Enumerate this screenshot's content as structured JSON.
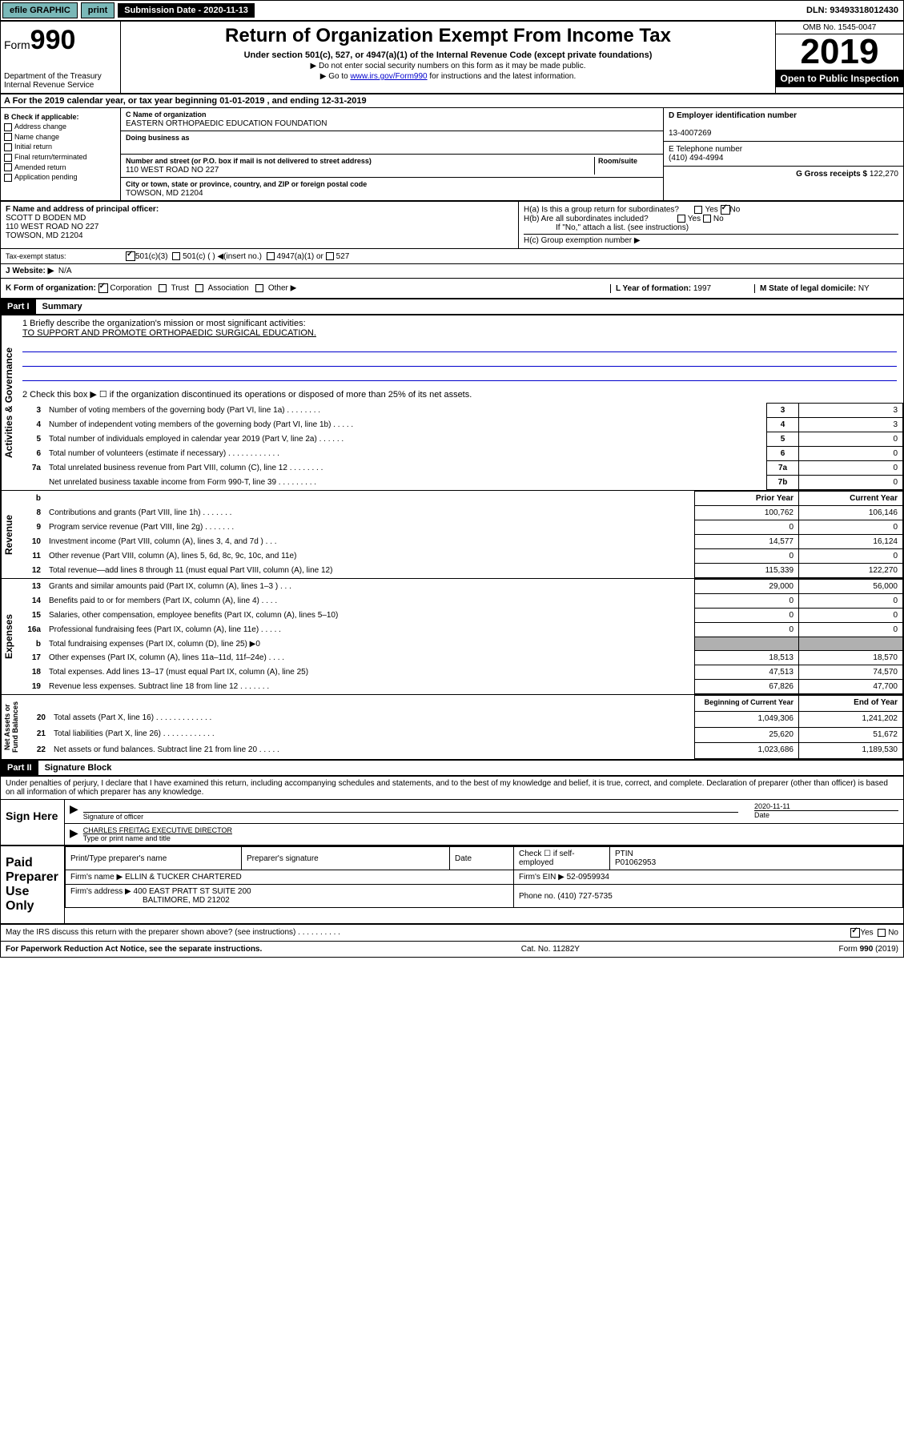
{
  "topbar": {
    "efile": "efile GRAPHIC",
    "print": "print",
    "sub_label": "Submission Date - 2020-11-13",
    "dln": "DLN: 93493318012430"
  },
  "header": {
    "form_prefix": "Form",
    "form_num": "990",
    "dept": "Department of the Treasury\nInternal Revenue Service",
    "title": "Return of Organization Exempt From Income Tax",
    "subtitle": "Under section 501(c), 527, or 4947(a)(1) of the Internal Revenue Code (except private foundations)",
    "note1": "▶ Do not enter social security numbers on this form as it may be made public.",
    "note2_pre": "▶ Go to ",
    "note2_link": "www.irs.gov/Form990",
    "note2_post": " for instructions and the latest information.",
    "omb": "OMB No. 1545-0047",
    "year": "2019",
    "open": "Open to Public Inspection"
  },
  "section_a": "A For the 2019 calendar year, or tax year beginning 01-01-2019    , and ending 12-31-2019",
  "box_b": {
    "title": "B Check if applicable:",
    "items": [
      "Address change",
      "Name change",
      "Initial return",
      "Final return/terminated",
      "Amended return",
      "Application pending"
    ]
  },
  "box_c": {
    "name_label": "C Name of organization",
    "name": "EASTERN ORTHOPAEDIC EDUCATION FOUNDATION",
    "dba_label": "Doing business as",
    "addr_label": "Number and street (or P.O. box if mail is not delivered to street address)",
    "room_label": "Room/suite",
    "addr": "110 WEST ROAD NO 227",
    "city_label": "City or town, state or province, country, and ZIP or foreign postal code",
    "city": "TOWSON, MD  21204"
  },
  "box_d": {
    "label": "D Employer identification number",
    "value": "13-4007269"
  },
  "box_e": {
    "label": "E Telephone number",
    "value": "(410) 494-4994"
  },
  "box_g": {
    "label": "G Gross receipts $",
    "value": "122,270"
  },
  "box_f": {
    "label": "F  Name and address of principal officer:",
    "name": "SCOTT D BODEN MD",
    "addr1": "110 WEST ROAD NO 227",
    "addr2": "TOWSON, MD  21204"
  },
  "box_h": {
    "ha": "H(a)  Is this a group return for subordinates?",
    "hb": "H(b)  Are all subordinates included?",
    "hb_note": "If \"No,\" attach a list. (see instructions)",
    "hc": "H(c)  Group exemption number ▶"
  },
  "tax_exempt": {
    "label": "Tax-exempt status:",
    "opt1": "501(c)(3)",
    "opt2": "501(c) (  ) ◀(insert no.)",
    "opt3": "4947(a)(1) or",
    "opt4": "527"
  },
  "box_j": {
    "label": "J    Website: ▶",
    "value": "N/A"
  },
  "box_k": "K Form of organization:",
  "box_k_opts": [
    "Corporation",
    "Trust",
    "Association",
    "Other ▶"
  ],
  "box_l": {
    "label": "L Year of formation:",
    "value": "1997"
  },
  "box_m": {
    "label": "M State of legal domicile:",
    "value": "NY"
  },
  "part1": {
    "label": "Part I",
    "title": "Summary",
    "line1_label": "1   Briefly describe the organization's mission or most significant activities:",
    "line1_text": "TO SUPPORT AND PROMOTE ORTHOPAEDIC SURGICAL EDUCATION.",
    "line2": "2   Check this box ▶ ☐  if the organization discontinued its operations or disposed of more than 25% of its net assets.",
    "governance_lines": [
      {
        "n": "3",
        "t": "Number of voting members of the governing body (Part VI, line 1a)  .   .   .   .   .   .   .   .",
        "b": "3",
        "v": "3"
      },
      {
        "n": "4",
        "t": "Number of independent voting members of the governing body (Part VI, line 1b)  .   .   .   .   .",
        "b": "4",
        "v": "3"
      },
      {
        "n": "5",
        "t": "Total number of individuals employed in calendar year 2019 (Part V, line 2a)  .   .   .   .   .   .",
        "b": "5",
        "v": "0"
      },
      {
        "n": "6",
        "t": "Total number of volunteers (estimate if necessary)  .   .   .   .   .   .   .   .   .   .   .   .",
        "b": "6",
        "v": "0"
      },
      {
        "n": "7a",
        "t": "Total unrelated business revenue from Part VIII, column (C), line 12  .   .   .   .   .   .   .   .",
        "b": "7a",
        "v": "0"
      },
      {
        "n": "",
        "t": "Net unrelated business taxable income from Form 990-T, line 39  .   .   .   .   .   .   .   .   .",
        "b": "7b",
        "v": "0"
      }
    ],
    "col_prior": "Prior Year",
    "col_current": "Current Year",
    "revenue_lines": [
      {
        "n": "8",
        "t": "Contributions and grants (Part VIII, line 1h)  .   .   .   .   .   .   .",
        "p": "100,762",
        "c": "106,146"
      },
      {
        "n": "9",
        "t": "Program service revenue (Part VIII, line 2g)  .   .   .   .   .   .   .",
        "p": "0",
        "c": "0"
      },
      {
        "n": "10",
        "t": "Investment income (Part VIII, column (A), lines 3, 4, and 7d )  .   .   .",
        "p": "14,577",
        "c": "16,124"
      },
      {
        "n": "11",
        "t": "Other revenue (Part VIII, column (A), lines 5, 6d, 8c, 9c, 10c, and 11e)",
        "p": "0",
        "c": "0"
      },
      {
        "n": "12",
        "t": "Total revenue—add lines 8 through 11 (must equal Part VIII, column (A), line 12)",
        "p": "115,339",
        "c": "122,270"
      }
    ],
    "expense_lines": [
      {
        "n": "13",
        "t": "Grants and similar amounts paid (Part IX, column (A), lines 1–3 )  .   .   .",
        "p": "29,000",
        "c": "56,000"
      },
      {
        "n": "14",
        "t": "Benefits paid to or for members (Part IX, column (A), line 4)  .   .   .   .",
        "p": "0",
        "c": "0"
      },
      {
        "n": "15",
        "t": "Salaries, other compensation, employee benefits (Part IX, column (A), lines 5–10)",
        "p": "0",
        "c": "0"
      },
      {
        "n": "16a",
        "t": "Professional fundraising fees (Part IX, column (A), line 11e)  .   .   .   .   .",
        "p": "0",
        "c": "0"
      },
      {
        "n": "b",
        "t": "Total fundraising expenses (Part IX, column (D), line 25) ▶0",
        "p": "",
        "c": "",
        "shaded": true
      },
      {
        "n": "17",
        "t": "Other expenses (Part IX, column (A), lines 11a–11d, 11f–24e)  .   .   .   .",
        "p": "18,513",
        "c": "18,570"
      },
      {
        "n": "18",
        "t": "Total expenses. Add lines 13–17 (must equal Part IX, column (A), line 25)",
        "p": "47,513",
        "c": "74,570"
      },
      {
        "n": "19",
        "t": "Revenue less expenses. Subtract line 18 from line 12  .   .   .   .   .   .   .",
        "p": "67,826",
        "c": "47,700"
      }
    ],
    "col_begin": "Beginning of Current Year",
    "col_end": "End of Year",
    "asset_lines": [
      {
        "n": "20",
        "t": "Total assets (Part X, line 16)  .   .   .   .   .   .   .   .   .   .   .   .   .",
        "p": "1,049,306",
        "c": "1,241,202"
      },
      {
        "n": "21",
        "t": "Total liabilities (Part X, line 26)  .   .   .   .   .   .   .   .   .   .   .   .",
        "p": "25,620",
        "c": "51,672"
      },
      {
        "n": "22",
        "t": "Net assets or fund balances. Subtract line 21 from line 20  .   .   .   .   .",
        "p": "1,023,686",
        "c": "1,189,530"
      }
    ]
  },
  "part2": {
    "label": "Part II",
    "title": "Signature Block",
    "declaration": "Under penalties of perjury, I declare that I have examined this return, including accompanying schedules and statements, and to the best of my knowledge and belief, it is true, correct, and complete. Declaration of preparer (other than officer) is based on all information of which preparer has any knowledge.",
    "sign_here": "Sign Here",
    "sig_officer": "Signature of officer",
    "sig_date": "2020-11-11",
    "date_label": "Date",
    "name_title": "CHARLES FREITAG  EXECUTIVE DIRECTOR",
    "name_title_label": "Type or print name and title",
    "paid": "Paid Preparer Use Only",
    "prep_name_label": "Print/Type preparer's name",
    "prep_sig_label": "Preparer's signature",
    "prep_date_label": "Date",
    "self_emp": "Check ☐ if self-employed",
    "ptin_label": "PTIN",
    "ptin": "P01062953",
    "firm_name_label": "Firm's name    ▶",
    "firm_name": "ELLIN & TUCKER CHARTERED",
    "firm_ein_label": "Firm's EIN ▶",
    "firm_ein": "52-0959934",
    "firm_addr_label": "Firm's address ▶",
    "firm_addr1": "400 EAST PRATT ST SUITE 200",
    "firm_addr2": "BALTIMORE, MD  21202",
    "phone_label": "Phone no.",
    "phone": "(410) 727-5735",
    "discuss": "May the IRS discuss this return with the preparer shown above? (see instructions)   .   .   .   .   .   .   .   .   .   ."
  },
  "footer": {
    "left": "For Paperwork Reduction Act Notice, see the separate instructions.",
    "mid": "Cat. No. 11282Y",
    "right": "Form 990 (2019)"
  }
}
